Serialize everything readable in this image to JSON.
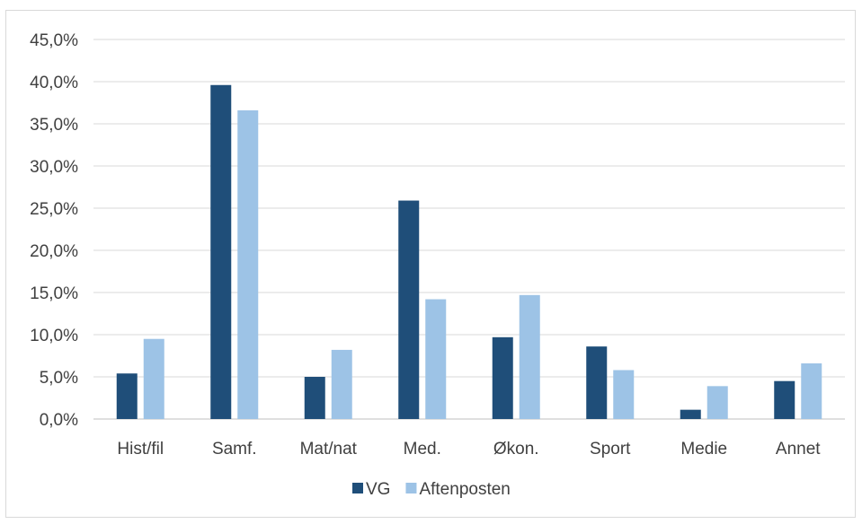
{
  "chart_data": {
    "type": "bar",
    "categories": [
      "Hist/fil",
      "Samf.",
      "Mat/nat",
      "Med.",
      "Økon.",
      "Sport",
      "Medie",
      "Annet"
    ],
    "series": [
      {
        "name": "VG",
        "color": "#1f4e79",
        "values": [
          5.4,
          39.6,
          5.0,
          25.9,
          9.7,
          8.6,
          1.1,
          4.5
        ]
      },
      {
        "name": "Aftenposten",
        "color": "#9dc3e6",
        "values": [
          9.5,
          36.6,
          8.2,
          14.2,
          14.7,
          5.8,
          3.9,
          6.6
        ]
      }
    ],
    "yticks": [
      "0,0%",
      "5,0%",
      "10,0%",
      "15,0%",
      "20,0%",
      "25,0%",
      "30,0%",
      "35,0%",
      "40,0%",
      "45,0%"
    ],
    "ylim": [
      0,
      45
    ],
    "ytick_step": 5,
    "grid": true,
    "legend_position": "bottom",
    "title": "",
    "xlabel": "",
    "ylabel": ""
  }
}
